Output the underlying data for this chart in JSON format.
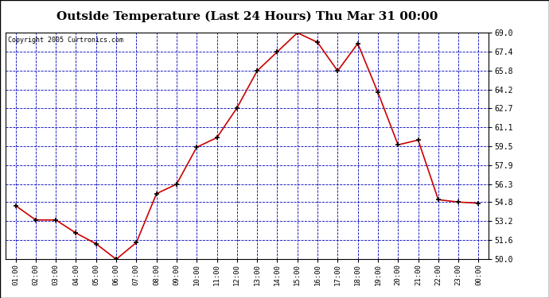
{
  "title": "Outside Temperature (Last 24 Hours) Thu Mar 31 00:00",
  "copyright": "Copyright 2005 Curtronics.com",
  "x_labels": [
    "01:00",
    "02:00",
    "03:00",
    "04:00",
    "05:00",
    "06:00",
    "07:00",
    "08:00",
    "09:00",
    "10:00",
    "11:00",
    "12:00",
    "13:00",
    "14:00",
    "15:00",
    "16:00",
    "17:00",
    "18:00",
    "19:00",
    "20:00",
    "21:00",
    "22:00",
    "23:00",
    "00:00"
  ],
  "y_values": [
    54.5,
    53.3,
    53.3,
    52.2,
    51.3,
    50.0,
    51.4,
    55.5,
    56.3,
    59.4,
    60.2,
    62.7,
    65.8,
    67.4,
    69.0,
    68.2,
    65.8,
    68.1,
    64.0,
    59.6,
    60.0,
    55.0,
    54.8,
    54.7
  ],
  "line_color": "#cc0000",
  "marker_color": "#000000",
  "bg_color": "#ffffff",
  "plot_bg_color": "#ffffff",
  "grid_color": "#0000bb",
  "title_fontsize": 11,
  "y_min": 50.0,
  "y_max": 69.0,
  "y_ticks": [
    50.0,
    51.6,
    53.2,
    54.8,
    56.3,
    57.9,
    59.5,
    61.1,
    62.7,
    64.2,
    65.8,
    67.4,
    69.0
  ]
}
